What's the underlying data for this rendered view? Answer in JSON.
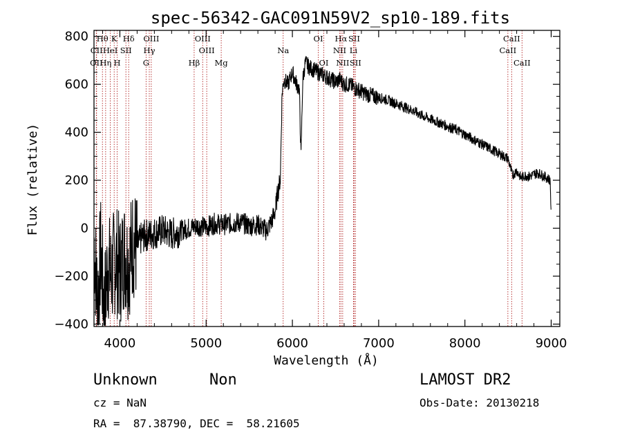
{
  "chart_data": {
    "type": "line",
    "title": "spec-56342-GAC091N59V2_sp10-189.fits",
    "xlabel": "Wavelength (Å)",
    "ylabel": "Flux (relative)",
    "xlim": [
      3700,
      9100
    ],
    "ylim": [
      -410,
      825
    ],
    "xticks": [
      4000,
      5000,
      6000,
      7000,
      8000,
      9000
    ],
    "yticks": [
      -400,
      -200,
      0,
      200,
      400,
      600,
      800
    ],
    "line_color": "#000000",
    "marker_color": "#b02020",
    "spectrum": [
      [
        3700,
        -50
      ],
      [
        3740,
        -300
      ],
      [
        3780,
        -100
      ],
      [
        3820,
        -350
      ],
      [
        3860,
        -150
      ],
      [
        3900,
        -200
      ],
      [
        3950,
        -120
      ],
      [
        4000,
        -180
      ],
      [
        4050,
        -100
      ],
      [
        4100,
        -150
      ],
      [
        4150,
        -60
      ],
      [
        4200,
        -80
      ],
      [
        4250,
        -40
      ],
      [
        4300,
        -30
      ],
      [
        4400,
        -20
      ],
      [
        4500,
        -10
      ],
      [
        4600,
        -25
      ],
      [
        4700,
        -10
      ],
      [
        4800,
        0
      ],
      [
        4900,
        10
      ],
      [
        5000,
        5
      ],
      [
        5100,
        20
      ],
      [
        5200,
        15
      ],
      [
        5300,
        20
      ],
      [
        5400,
        25
      ],
      [
        5500,
        10
      ],
      [
        5600,
        15
      ],
      [
        5700,
        -10
      ],
      [
        5760,
        30
      ],
      [
        5800,
        70
      ],
      [
        5830,
        150
      ],
      [
        5860,
        200
      ],
      [
        5880,
        560
      ],
      [
        5900,
        620
      ],
      [
        5950,
        600
      ],
      [
        6000,
        650
      ],
      [
        6050,
        600
      ],
      [
        6080,
        580
      ],
      [
        6100,
        300
      ],
      [
        6120,
        620
      ],
      [
        6150,
        690
      ],
      [
        6200,
        670
      ],
      [
        6250,
        660
      ],
      [
        6300,
        650
      ],
      [
        6350,
        640
      ],
      [
        6400,
        630
      ],
      [
        6450,
        620
      ],
      [
        6500,
        610
      ],
      [
        6550,
        620
      ],
      [
        6600,
        600
      ],
      [
        6650,
        600
      ],
      [
        6700,
        590
      ],
      [
        6750,
        580
      ],
      [
        6800,
        570
      ],
      [
        6850,
        560
      ],
      [
        6900,
        555
      ],
      [
        6950,
        550
      ],
      [
        7000,
        545
      ],
      [
        7100,
        535
      ],
      [
        7200,
        520
      ],
      [
        7300,
        505
      ],
      [
        7400,
        490
      ],
      [
        7500,
        470
      ],
      [
        7600,
        455
      ],
      [
        7700,
        440
      ],
      [
        7800,
        425
      ],
      [
        7900,
        410
      ],
      [
        8000,
        390
      ],
      [
        8100,
        370
      ],
      [
        8200,
        350
      ],
      [
        8300,
        330
      ],
      [
        8400,
        310
      ],
      [
        8500,
        290
      ],
      [
        8550,
        220
      ],
      [
        8600,
        240
      ],
      [
        8650,
        210
      ],
      [
        8700,
        220
      ],
      [
        8750,
        215
      ],
      [
        8800,
        225
      ],
      [
        8850,
        230
      ],
      [
        8900,
        220
      ],
      [
        8950,
        210
      ],
      [
        8990,
        200
      ],
      [
        9000,
        20
      ]
    ],
    "lines": [
      {
        "label": "Hθ",
        "x": 3798,
        "row": 0
      },
      {
        "label": "K",
        "x": 3934,
        "row": 0
      },
      {
        "label": "Hδ",
        "x": 4102,
        "row": 0
      },
      {
        "label": "OIII",
        "x": 4364,
        "row": 0
      },
      {
        "label": "OIII",
        "x": 4960,
        "row": 0
      },
      {
        "label": "OI",
        "x": 6300,
        "row": 0
      },
      {
        "label": "Hα",
        "x": 6563,
        "row": 0
      },
      {
        "label": "SII",
        "x": 6716,
        "row": 0
      },
      {
        "label": "CaII",
        "x": 8542,
        "row": 0
      },
      {
        "label": "CII",
        "x": 3730,
        "row": 1
      },
      {
        "label": "HeI",
        "x": 3889,
        "row": 1
      },
      {
        "label": "SII",
        "x": 4070,
        "row": 1
      },
      {
        "label": "Hγ",
        "x": 4341,
        "row": 1
      },
      {
        "label": "OIII",
        "x": 5007,
        "row": 1
      },
      {
        "label": "Na",
        "x": 5893,
        "row": 1
      },
      {
        "label": "NII",
        "x": 6548,
        "row": 1
      },
      {
        "label": "Li",
        "x": 6708,
        "row": 1
      },
      {
        "label": "CaII",
        "x": 8498,
        "row": 1
      },
      {
        "label": "OII",
        "x": 3727,
        "row": 2
      },
      {
        "label": "Hη",
        "x": 3835,
        "row": 2
      },
      {
        "label": "H",
        "x": 3969,
        "row": 2
      },
      {
        "label": "G",
        "x": 4304,
        "row": 2
      },
      {
        "label": "Hβ",
        "x": 4861,
        "row": 2
      },
      {
        "label": "Mg",
        "x": 5175,
        "row": 2
      },
      {
        "label": "OI",
        "x": 6364,
        "row": 2
      },
      {
        "label": "NII",
        "x": 6583,
        "row": 2
      },
      {
        "label": "SII",
        "x": 6731,
        "row": 2
      },
      {
        "label": "CaII",
        "x": 8662,
        "row": 2
      }
    ]
  },
  "info": {
    "class_label": "Unknown",
    "subclass_label": "Non",
    "cz": "cz = NaN",
    "radec": "RA =  87.38790, DEC =  58.21605",
    "survey": "LAMOST DR2",
    "obs_date": "Obs-Date: 20130218"
  }
}
